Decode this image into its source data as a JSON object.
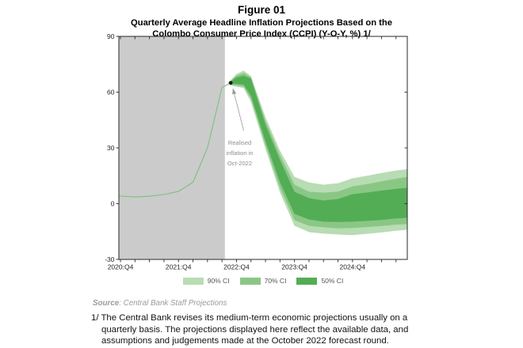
{
  "figure": {
    "title": "Figure 01",
    "subtitle_line1": "Quarterly Average Headline Inflation Projections Based on the",
    "subtitle_line2": "Colombo Consumer Price Index (CCPI) (Y-O-Y, %) 1/"
  },
  "source": {
    "label": "Source",
    "text": ": Central Bank Staff Projections"
  },
  "footnote": {
    "lines": [
      "1/ The Central Bank revises its medium-term economic projections usually on a",
      "quarterly basis. The projections displayed here reflect the available data, and",
      "assumptions and judgements made at the October 2022 forecast round."
    ]
  },
  "chart_data": {
    "type": "area",
    "variant": "fan-chart-with-history-line",
    "title": "Figure 01 — Quarterly Average Headline Inflation Projections (CCPI, Y-O-Y, %)",
    "xlabel": "",
    "ylabel": "",
    "grid": false,
    "x_axis": {
      "unit": "quarters_after_2020Q4",
      "min_q": -0.11,
      "max_q": 19.78,
      "minor_tick_every": 1,
      "major_ticks": [
        {
          "q": 0,
          "label": "2020:Q4"
        },
        {
          "q": 4,
          "label": "2021:Q4"
        },
        {
          "q": 8,
          "label": "2022:Q4"
        },
        {
          "q": 12,
          "label": "2023:Q4"
        },
        {
          "q": 16,
          "label": "2024:Q4"
        }
      ]
    },
    "y_axis": {
      "min": -30,
      "max": 90,
      "ticks": [
        90,
        60,
        30,
        0,
        -30
      ]
    },
    "history_region": {
      "from_q": -0.11,
      "to_q": 7.2,
      "color": "#cbcbcb"
    },
    "history_line": {
      "color": "#7cc07c",
      "points": [
        {
          "q": -0.11,
          "v": 4.2
        },
        {
          "q": 0,
          "v": 4.1
        },
        {
          "q": 1,
          "v": 3.6
        },
        {
          "q": 2,
          "v": 4.0
        },
        {
          "q": 3,
          "v": 4.9
        },
        {
          "q": 4,
          "v": 6.6
        },
        {
          "q": 5,
          "v": 11.5
        },
        {
          "q": 6,
          "v": 30.0
        },
        {
          "q": 7,
          "v": 62.5
        },
        {
          "q": 7.6,
          "v": 65.0
        }
      ]
    },
    "realised_point": {
      "q": 7.6,
      "v": 65.0,
      "label_lines": [
        "Realised",
        "inflation in",
        "Oct-2022"
      ]
    },
    "fan": {
      "colors": {
        "ci90": "#b8dcb3",
        "ci70": "#8ac785",
        "ci50": "#53ad55"
      },
      "points": [
        {
          "q": 7.6,
          "p90t": 66.5,
          "p70t": 66.1,
          "p50t": 65.7,
          "p50b": 64.4,
          "p70b": 64.0,
          "p90b": 63.6
        },
        {
          "q": 8.0,
          "p90t": 69.8,
          "p70t": 68.9,
          "p50t": 68.0,
          "p50b": 64.4,
          "p70b": 63.6,
          "p90b": 62.9
        },
        {
          "q": 8.5,
          "p90t": 71.6,
          "p70t": 70.3,
          "p50t": 68.9,
          "p50b": 64.0,
          "p70b": 63.0,
          "p90b": 62.2
        },
        {
          "q": 9.0,
          "p90t": 68.6,
          "p70t": 68.0,
          "p50t": 67.3,
          "p50b": 58.0,
          "p70b": 56.4,
          "p90b": 54.7
        },
        {
          "q": 10.0,
          "p90t": 46.5,
          "p70t": 44.5,
          "p50t": 42.5,
          "p50b": 33.5,
          "p70b": 31.5,
          "p90b": 29.5
        },
        {
          "q": 11.0,
          "p90t": 28.5,
          "p70t": 26.0,
          "p50t": 23.5,
          "p50b": 11.5,
          "p70b": 8.5,
          "p90b": 6.0
        },
        {
          "q": 12.0,
          "p90t": 14.4,
          "p70t": 10.2,
          "p50t": 6.4,
          "p50b": -5.5,
          "p70b": -8.9,
          "p90b": -11.9
        },
        {
          "q": 13.0,
          "p90t": 11.4,
          "p70t": 6.4,
          "p50t": 3.0,
          "p50b": -8.5,
          "p70b": -11.9,
          "p90b": -15.3
        },
        {
          "q": 14.0,
          "p90t": 10.2,
          "p70t": 5.9,
          "p50t": 1.7,
          "p50b": -9.7,
          "p70b": -12.7,
          "p90b": -16.1
        },
        {
          "q": 15.0,
          "p90t": 11.0,
          "p70t": 6.5,
          "p50t": 2.5,
          "p50b": -9.9,
          "p70b": -13.3,
          "p90b": -16.6
        },
        {
          "q": 16.0,
          "p90t": 13.6,
          "p70t": 9.3,
          "p50t": 5.1,
          "p50b": -9.7,
          "p70b": -13.1,
          "p90b": -16.9
        },
        {
          "q": 17.0,
          "p90t": 15.0,
          "p70t": 10.5,
          "p50t": 6.0,
          "p50b": -9.3,
          "p70b": -12.6,
          "p90b": -16.2
        },
        {
          "q": 18.0,
          "p90t": 16.5,
          "p70t": 12.0,
          "p50t": 7.0,
          "p50b": -8.8,
          "p70b": -12.0,
          "p90b": -15.5
        },
        {
          "q": 19.0,
          "p90t": 17.8,
          "p70t": 13.4,
          "p50t": 8.0,
          "p50b": -8.0,
          "p70b": -11.3,
          "p90b": -14.6
        },
        {
          "q": 19.78,
          "p90t": 18.6,
          "p70t": 14.4,
          "p50t": 8.5,
          "p50b": -7.6,
          "p70b": -11.0,
          "p90b": -14.0
        }
      ]
    },
    "legend": [
      {
        "id": "90ci",
        "label": "90% CI",
        "color": "#b8dcb3"
      },
      {
        "id": "70ci",
        "label": "70% CI",
        "color": "#8ac785"
      },
      {
        "id": "50ci",
        "label": "50% CI",
        "color": "#53ad55"
      }
    ],
    "legend_position": "bottom-center"
  }
}
